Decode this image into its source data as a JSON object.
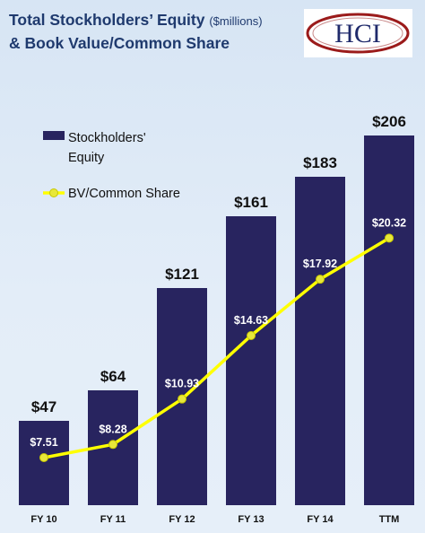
{
  "title": {
    "line1": "Total Stockholders’ Equity",
    "unit": "($millions)",
    "line2": "& Book Value/Common Share"
  },
  "logo": {
    "text": "HCI"
  },
  "colors": {
    "bar": "#28245f",
    "line": "#ffff00",
    "marker": "#e8e83a",
    "title": "#1f3a6e",
    "logo_ring": "#9b1b1b"
  },
  "chart_data": {
    "type": "bar",
    "categories": [
      "FY 10",
      "FY 11",
      "FY 12",
      "FY 13",
      "FY 14",
      "TTM"
    ],
    "series": [
      {
        "name": "Stockholders' Equity",
        "type": "bar",
        "values": [
          47,
          64,
          121,
          161,
          183,
          206
        ],
        "labels": [
          "$47",
          "$64",
          "$121",
          "$161",
          "$183",
          "$206"
        ]
      },
      {
        "name": "BV/Common Share",
        "type": "line",
        "values": [
          7.51,
          8.28,
          10.93,
          14.63,
          17.92,
          20.32
        ],
        "labels": [
          "$7.51",
          "$8.28",
          "$10.93",
          "$14.63",
          "$17.92",
          "$20.32"
        ]
      }
    ],
    "legend": {
      "placement": "top-left",
      "entries": [
        "Stockholders'\nEquity",
        "BV/Common Share"
      ]
    },
    "grid": false
  }
}
